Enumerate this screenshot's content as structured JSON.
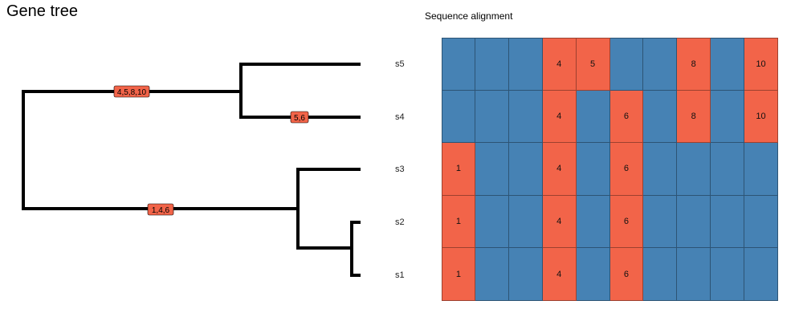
{
  "title": "Gene tree",
  "alignment_title": "Sequence alignment",
  "colors": {
    "match": "#4682B4",
    "mismatch": "#F26449",
    "branch": "#000000"
  },
  "tips": [
    "s5",
    "s4",
    "s3",
    "s2",
    "s1"
  ],
  "branch_labels": [
    "4,5,8,10",
    "5,6",
    "1,4,6"
  ],
  "alignment": {
    "rows": [
      {
        "tip": "s5",
        "cells": [
          "",
          "",
          "",
          "4",
          "5",
          "",
          "",
          "8",
          "",
          "10"
        ]
      },
      {
        "tip": "s4",
        "cells": [
          "",
          "",
          "",
          "4",
          "",
          "6",
          "",
          "8",
          "",
          "10"
        ]
      },
      {
        "tip": "s3",
        "cells": [
          "1",
          "",
          "",
          "4",
          "",
          "6",
          "",
          "",
          "",
          ""
        ]
      },
      {
        "tip": "s2",
        "cells": [
          "1",
          "",
          "",
          "4",
          "",
          "6",
          "",
          "",
          "",
          ""
        ]
      },
      {
        "tip": "s1",
        "cells": [
          "1",
          "",
          "",
          "4",
          "",
          "6",
          "",
          "",
          "",
          ""
        ]
      }
    ]
  }
}
